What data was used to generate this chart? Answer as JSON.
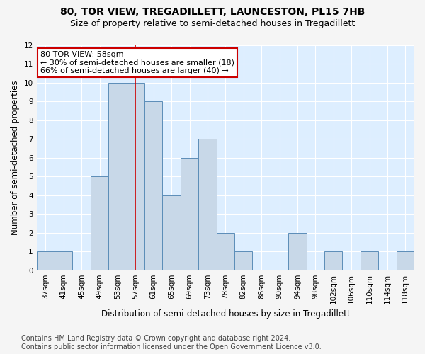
{
  "title": "80, TOR VIEW, TREGADILLETT, LAUNCESTON, PL15 7HB",
  "subtitle": "Size of property relative to semi-detached houses in Tregadillett",
  "xlabel": "Distribution of semi-detached houses by size in Tregadillett",
  "ylabel": "Number of semi-detached properties",
  "footer": "Contains HM Land Registry data © Crown copyright and database right 2024.\nContains public sector information licensed under the Open Government Licence v3.0.",
  "bin_labels": [
    "37sqm",
    "41sqm",
    "45sqm",
    "49sqm",
    "53sqm",
    "57sqm",
    "61sqm",
    "65sqm",
    "69sqm",
    "73sqm",
    "78sqm",
    "82sqm",
    "86sqm",
    "90sqm",
    "94sqm",
    "98sqm",
    "102sqm",
    "106sqm",
    "110sqm",
    "114sqm",
    "118sqm"
  ],
  "bar_values": [
    1,
    1,
    0,
    5,
    10,
    10,
    9,
    4,
    6,
    7,
    2,
    1,
    0,
    0,
    2,
    0,
    1,
    0,
    1,
    0,
    1
  ],
  "bar_color": "#c8d8e8",
  "bar_edge_color": "#5b8db8",
  "red_line_index": 5,
  "ylim": [
    0,
    12
  ],
  "yticks": [
    0,
    1,
    2,
    3,
    4,
    5,
    6,
    7,
    8,
    9,
    10,
    11,
    12
  ],
  "annotation_text": "80 TOR VIEW: 58sqm\n← 30% of semi-detached houses are smaller (18)\n66% of semi-detached houses are larger (40) →",
  "annotation_color": "#cc0000",
  "plot_bg_color": "#ddeeff",
  "fig_bg_color": "#f5f5f5",
  "grid_color": "#ffffff",
  "title_fontsize": 10,
  "subtitle_fontsize": 9,
  "axis_label_fontsize": 8.5,
  "tick_fontsize": 7.5,
  "footer_fontsize": 7
}
